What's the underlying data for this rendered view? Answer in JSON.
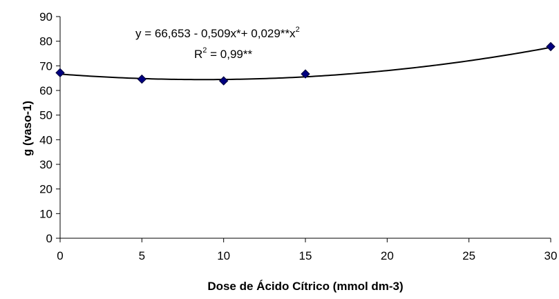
{
  "chart_data": {
    "type": "scatter",
    "title": "",
    "xlabel": "Dose de Ácido Cítrico (mmol dm-3)",
    "ylabel": "g (vaso-1)",
    "xlim": [
      0,
      30
    ],
    "ylim": [
      0,
      90
    ],
    "xticks": [
      "0",
      "5",
      "10",
      "15",
      "20",
      "25",
      "30"
    ],
    "yticks": [
      "0",
      "10",
      "20",
      "30",
      "40",
      "50",
      "60",
      "70",
      "80",
      "90"
    ],
    "grid": false,
    "legend": "none",
    "series": [
      {
        "x": [
          0,
          5,
          10,
          15,
          30
        ],
        "y": [
          67.2,
          64.6,
          63.9,
          66.7,
          77.8
        ],
        "marker": "diamond",
        "color": "#000080"
      }
    ],
    "trendline": {
      "type": "polynomial",
      "intercept": 66.653,
      "linear_coef": -0.509,
      "quadratic_coef": 0.029,
      "color": "#000000"
    },
    "annotations": {
      "equation_parts": [
        "y = 66,653 - 0,509x*+ 0,029**x",
        "2"
      ],
      "r2_parts": [
        "R",
        "2",
        " = 0,99**"
      ]
    }
  }
}
